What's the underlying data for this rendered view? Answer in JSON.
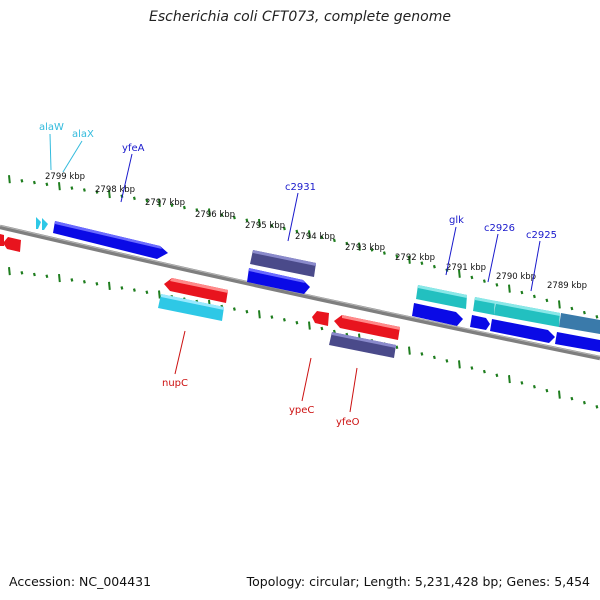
{
  "title": "Escherichia coli CFT073, complete genome",
  "footer": {
    "accession": "Accession: NC_004431",
    "info": "Topology: circular; Length: 5,231,428 bp; Genes: 5,454"
  },
  "colors": {
    "backbone": "#7f7f7f",
    "tick": "#1e7d1e",
    "forward_cds": "#0a0ae6",
    "reverse_cds": "#e8141e",
    "trna": "#2ec8e6",
    "pseudo": "#4a4a8a",
    "teal_feature": "#22c0c0",
    "steel_feature": "#3a7aaa",
    "label_blue": "#1a1acc",
    "label_red": "#cc1111",
    "label_cyan": "#33bbdd"
  },
  "kbp_labels": [
    "2799 kbp",
    "2798 kbp",
    "2797 kbp",
    "2796 kbp",
    "2795 kbp",
    "2794 kbp",
    "2793 kbp",
    "2792 kbp",
    "2791 kbp",
    "2790 kbp",
    "2789 kbp"
  ],
  "gene_labels": {
    "alaW": "alaW",
    "alaX": "alaX",
    "yfeA": "yfeA",
    "c2931": "c2931",
    "glk": "glk",
    "c2926": "c2926",
    "c2925": "c2925",
    "nupC": "nupC",
    "ypeC": "ypeC",
    "yfeO": "yfeO"
  }
}
